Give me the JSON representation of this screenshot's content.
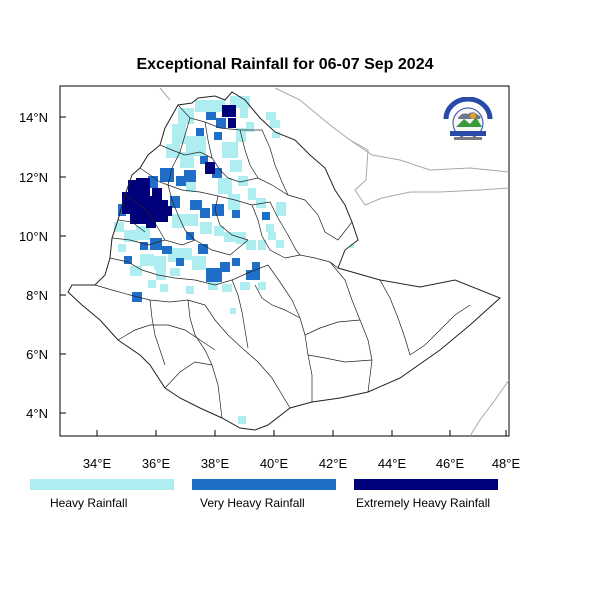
{
  "title": "Exceptional Rainfall for 06-07 Sep 2024",
  "axes": {
    "x_ticks": [
      "34°E",
      "36°E",
      "38°E",
      "40°E",
      "42°E",
      "44°E",
      "46°E",
      "48°E"
    ],
    "y_ticks": [
      "14°N",
      "12°N",
      "10°N",
      "8°N",
      "6°N",
      "4°N"
    ]
  },
  "legend": {
    "items": [
      {
        "label": "Heavy Rainfall",
        "color": "#aeeef0"
      },
      {
        "label": "Very Heavy Rainfall",
        "color": "#1f6ec8"
      },
      {
        "label": "Extremely Heavy Rainfall",
        "color": "#00007a"
      }
    ]
  },
  "colors": {
    "heavy": "#aeeef0",
    "very_heavy": "#1f6ec8",
    "extreme": "#00007a",
    "boundary": "#222222",
    "neighbor": "#a8a8a8"
  },
  "logo": {
    "icon": "meteorology-agency-logo-icon"
  }
}
